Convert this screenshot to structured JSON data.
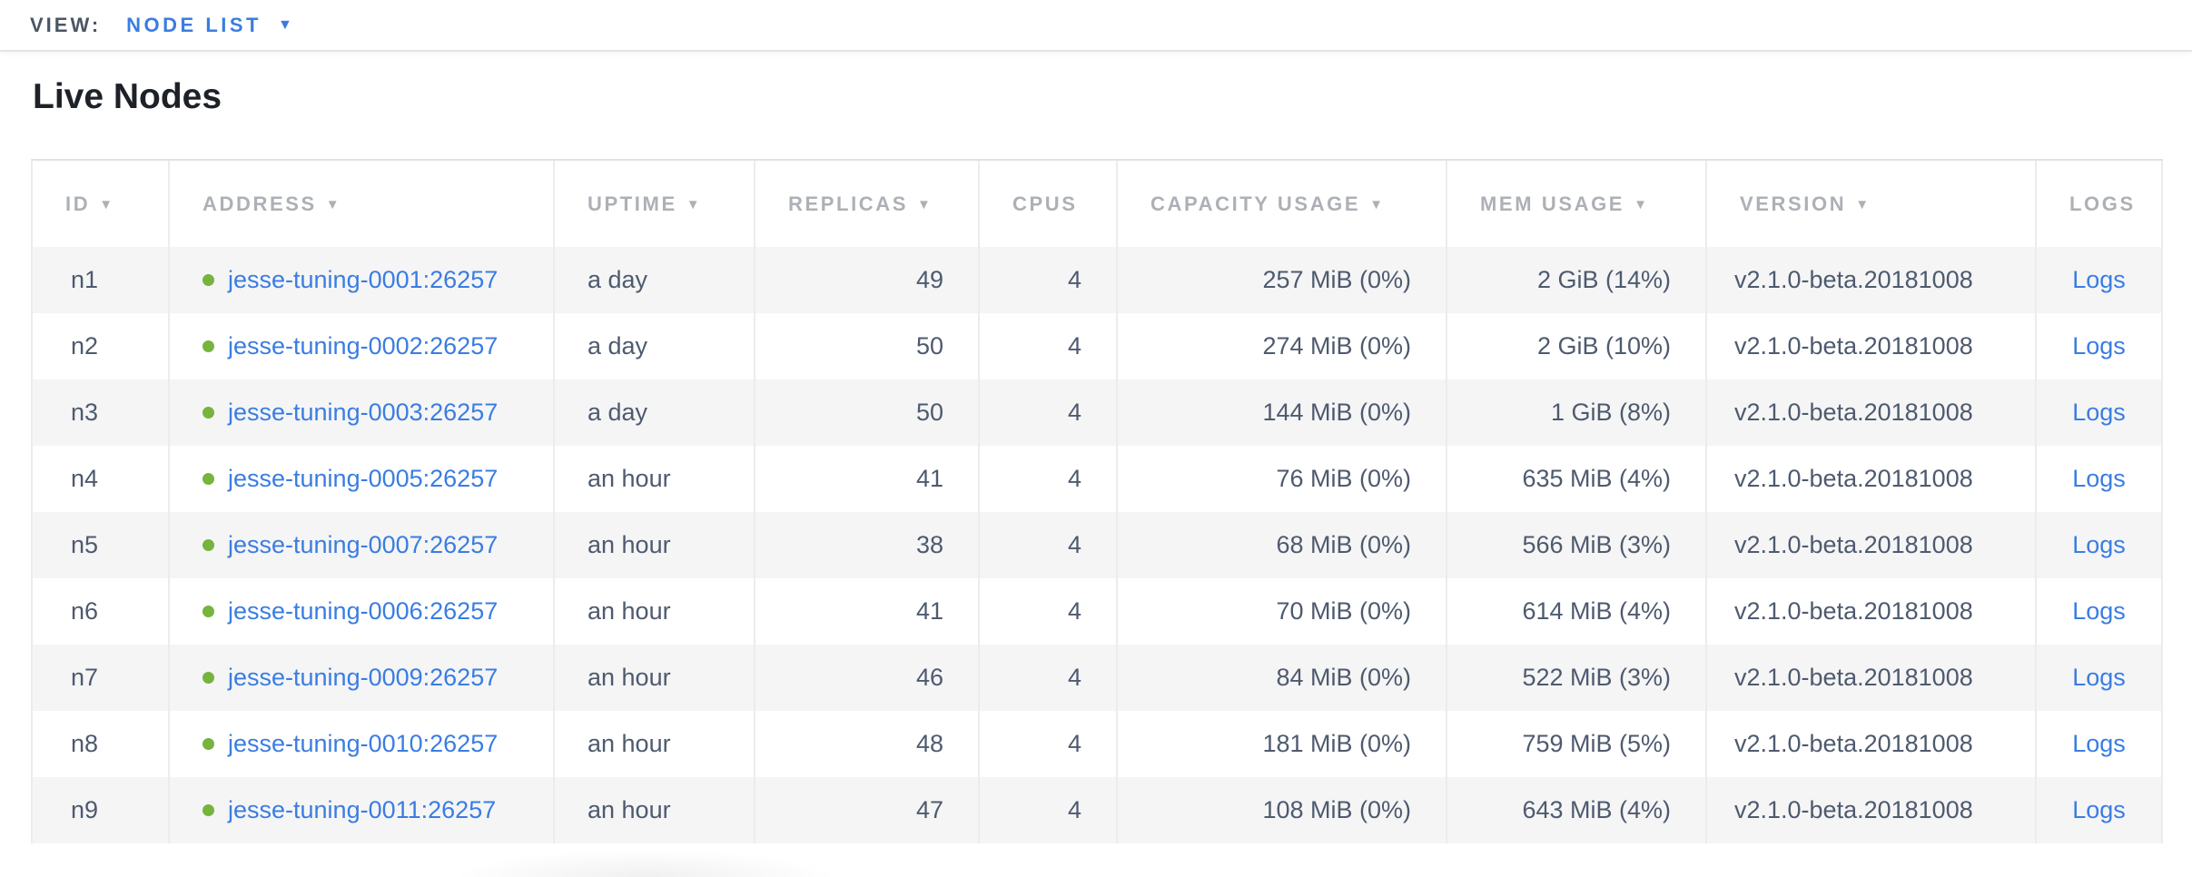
{
  "view_bar": {
    "label": "VIEW:",
    "selected": "NODE LIST"
  },
  "page": {
    "title": "Live Nodes"
  },
  "icons": {
    "sort_arrow": "▼",
    "dropdown_arrow": "▼",
    "live_status_dot": "●"
  },
  "colors": {
    "accent_blue": "#3a7de1",
    "live_green": "#76b43d",
    "header_gray": "#adb0b6",
    "cell_slate": "#4e5a6e",
    "alt_row_bg": "#f5f5f6"
  },
  "table": {
    "columns": [
      {
        "key": "id",
        "label": "ID",
        "sortable": true
      },
      {
        "key": "address",
        "label": "ADDRESS",
        "sortable": true
      },
      {
        "key": "uptime",
        "label": "UPTIME",
        "sortable": true
      },
      {
        "key": "replicas",
        "label": "REPLICAS",
        "sortable": true
      },
      {
        "key": "cpus",
        "label": "CPUS",
        "sortable": false
      },
      {
        "key": "capacity",
        "label": "CAPACITY USAGE",
        "sortable": true
      },
      {
        "key": "mem",
        "label": "MEM USAGE",
        "sortable": true
      },
      {
        "key": "version",
        "label": "VERSION",
        "sortable": true
      },
      {
        "key": "logs",
        "label": "LOGS",
        "sortable": false
      }
    ],
    "rows": [
      {
        "id": "n1",
        "status": "live",
        "address": "jesse-tuning-0001:26257",
        "uptime": "a day",
        "replicas": "49",
        "cpus": "4",
        "capacity": "257 MiB (0%)",
        "mem": "2 GiB (14%)",
        "version": "v2.1.0-beta.20181008",
        "logs": "Logs"
      },
      {
        "id": "n2",
        "status": "live",
        "address": "jesse-tuning-0002:26257",
        "uptime": "a day",
        "replicas": "50",
        "cpus": "4",
        "capacity": "274 MiB (0%)",
        "mem": "2 GiB (10%)",
        "version": "v2.1.0-beta.20181008",
        "logs": "Logs"
      },
      {
        "id": "n3",
        "status": "live",
        "address": "jesse-tuning-0003:26257",
        "uptime": "a day",
        "replicas": "50",
        "cpus": "4",
        "capacity": "144 MiB (0%)",
        "mem": "1 GiB (8%)",
        "version": "v2.1.0-beta.20181008",
        "logs": "Logs"
      },
      {
        "id": "n4",
        "status": "live",
        "address": "jesse-tuning-0005:26257",
        "uptime": "an hour",
        "replicas": "41",
        "cpus": "4",
        "capacity": "76 MiB (0%)",
        "mem": "635 MiB (4%)",
        "version": "v2.1.0-beta.20181008",
        "logs": "Logs"
      },
      {
        "id": "n5",
        "status": "live",
        "address": "jesse-tuning-0007:26257",
        "uptime": "an hour",
        "replicas": "38",
        "cpus": "4",
        "capacity": "68 MiB (0%)",
        "mem": "566 MiB (3%)",
        "version": "v2.1.0-beta.20181008",
        "logs": "Logs"
      },
      {
        "id": "n6",
        "status": "live",
        "address": "jesse-tuning-0006:26257",
        "uptime": "an hour",
        "replicas": "41",
        "cpus": "4",
        "capacity": "70 MiB (0%)",
        "mem": "614 MiB (4%)",
        "version": "v2.1.0-beta.20181008",
        "logs": "Logs"
      },
      {
        "id": "n7",
        "status": "live",
        "address": "jesse-tuning-0009:26257",
        "uptime": "an hour",
        "replicas": "46",
        "cpus": "4",
        "capacity": "84 MiB (0%)",
        "mem": "522 MiB (3%)",
        "version": "v2.1.0-beta.20181008",
        "logs": "Logs"
      },
      {
        "id": "n8",
        "status": "live",
        "address": "jesse-tuning-0010:26257",
        "uptime": "an hour",
        "replicas": "48",
        "cpus": "4",
        "capacity": "181 MiB (0%)",
        "mem": "759 MiB (5%)",
        "version": "v2.1.0-beta.20181008",
        "logs": "Logs"
      },
      {
        "id": "n9",
        "status": "live",
        "address": "jesse-tuning-0011:26257",
        "uptime": "an hour",
        "replicas": "47",
        "cpus": "4",
        "capacity": "108 MiB (0%)",
        "mem": "643 MiB (4%)",
        "version": "v2.1.0-beta.20181008",
        "logs": "Logs"
      }
    ]
  }
}
